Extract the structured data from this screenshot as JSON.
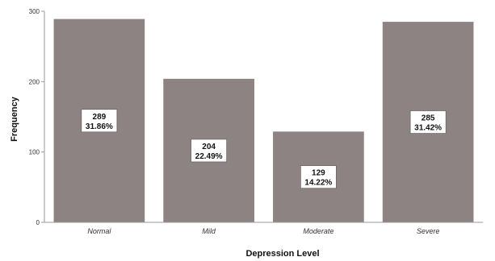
{
  "chart_data": {
    "type": "bar",
    "categories": [
      "Normal",
      "Mild",
      "Moderate",
      "Severe"
    ],
    "values": [
      289,
      204,
      129,
      285
    ],
    "percent_labels": [
      "31.86%",
      "22.49%",
      "14.22%",
      "31.42%"
    ],
    "count_labels": [
      "289",
      "204",
      "129",
      "285"
    ],
    "xlabel": "Depression Level",
    "ylabel": "Frequency",
    "ylim": [
      0,
      300
    ],
    "yticks": [
      0,
      100,
      200,
      300
    ],
    "ytick_labels": [
      "0",
      "100",
      "200",
      "300"
    ],
    "grid": false,
    "bar_color": "#8c8382",
    "label_box_color": "#ffffff"
  }
}
